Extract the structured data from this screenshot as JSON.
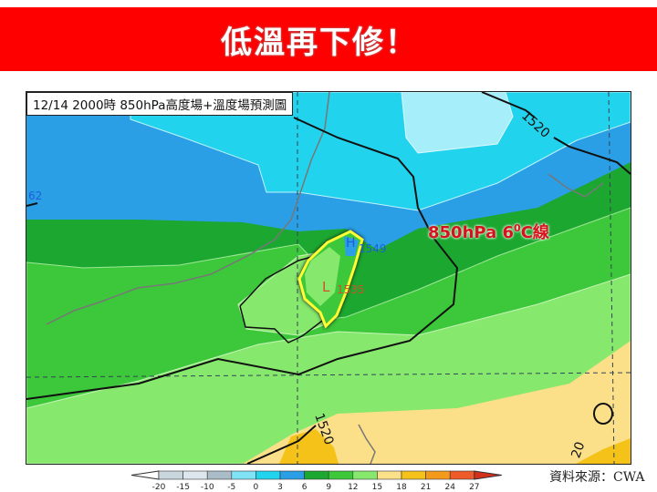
{
  "header": {
    "title": "低溫再下修！",
    "background_color": "#ff0000"
  },
  "map": {
    "caption": "12/14 2000時  850hPa高度場+溫度場預測圖",
    "high_label": "H",
    "high_value": "1549",
    "low_label": "L",
    "low_value": "1535",
    "contour_label_top": "1520",
    "contour_label_bottom": "1520",
    "contour_label_bottom_right": "20",
    "contour_label_left": "62",
    "annotation": {
      "text": "850hPa 6",
      "sup": "0",
      "suffix": "C線",
      "color": "#d4141a"
    },
    "highlight_color": "#ffff33"
  },
  "colorbar": {
    "ticks": [
      "-20",
      "-15",
      "-10",
      "-5",
      "0",
      "3",
      "6",
      "9",
      "12",
      "15",
      "18",
      "21",
      "24",
      "27"
    ],
    "colors": [
      "#c9d6de",
      "#dde6ec",
      "#a9bcc7",
      "#7fe3f5",
      "#22d3ee",
      "#2a9fe6",
      "#1ca830",
      "#3cc83a",
      "#86e86c",
      "#fbe089",
      "#f5c21a",
      "#f39a1c",
      "#ef5a2a",
      "#d4301a"
    ],
    "left_arrow_color": "#ffffff",
    "right_arrow_color": "#d4301a"
  },
  "source": "資料來源：CWA"
}
